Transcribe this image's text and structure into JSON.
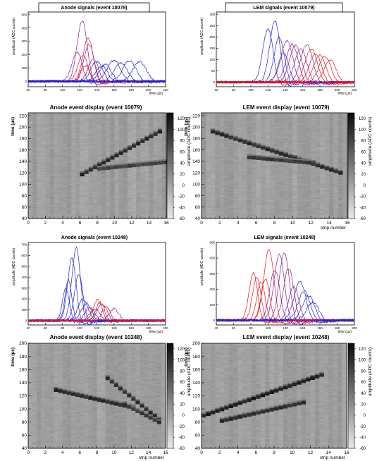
{
  "panels": [
    {
      "kind": "signals",
      "title": "Anode signals (event 10079)",
      "xlabel": "time (µs)",
      "ylabel": "amplitude (ADC counts)",
      "xticks": [
        60,
        80,
        100,
        120,
        140,
        160,
        180,
        200,
        220
      ],
      "yticks": [
        0,
        100,
        200,
        300,
        400,
        500
      ]
    },
    {
      "kind": "signals",
      "title": "LEM signals (event 10079)",
      "xlabel": "time (µs)",
      "ylabel": "amplitude (ADC counts)",
      "xticks": [
        60,
        80,
        100,
        120,
        140,
        160,
        180,
        200,
        220
      ],
      "yticks": [
        0,
        50,
        100,
        150,
        200,
        250,
        300
      ]
    },
    {
      "kind": "display",
      "title": "Anode event display (event 10079)",
      "xlabel": "",
      "ylabel": "time (µs)",
      "zlabel": "amplitude (ADC counts)",
      "xticks": [
        0,
        2,
        4,
        6,
        8,
        10,
        12,
        14,
        16
      ],
      "yticks": [
        40,
        60,
        80,
        100,
        120,
        140,
        160,
        180,
        200,
        220
      ],
      "zticks": [
        -60,
        -40,
        -20,
        0,
        20,
        40,
        60,
        80,
        100,
        120
      ]
    },
    {
      "kind": "display",
      "title": "LEM event display (event 10079)",
      "xlabel": "strip number",
      "ylabel": "time (µs)",
      "zlabel": "amplitude (ADC counts)",
      "xticks": [
        0,
        2,
        4,
        6,
        8,
        10,
        12,
        14,
        16
      ],
      "yticks": [
        40,
        60,
        80,
        100,
        120,
        140,
        160,
        180,
        200,
        220
      ],
      "zticks": [
        -60,
        -40,
        -20,
        0,
        20,
        40,
        60,
        80,
        100,
        120
      ]
    },
    {
      "kind": "signals",
      "title": "Anode signals (event 10248)",
      "xlabel": "time (µs)",
      "ylabel": "amplitude (ADC counts)",
      "xticks": [
        40,
        60,
        80,
        100,
        120,
        140,
        160,
        180,
        200
      ],
      "yticks": [
        0,
        100,
        200,
        300,
        400,
        500,
        600,
        700
      ]
    },
    {
      "kind": "signals",
      "title": "LEM signals (event 10248)",
      "xlabel": "time (µs)",
      "ylabel": "amplitude (ADC counts)",
      "xticks": [
        40,
        60,
        80,
        100,
        120,
        140,
        160,
        180,
        200
      ],
      "yticks": [
        0,
        100,
        200,
        300,
        400,
        500
      ]
    },
    {
      "kind": "display",
      "title": "Anode event display (event 10248)",
      "xlabel": "strip number",
      "ylabel": "time (µs)",
      "zlabel": "amplitude (ADC counts)",
      "xticks": [
        0,
        2,
        4,
        6,
        8,
        10,
        12,
        14,
        16
      ],
      "yticks": [
        40,
        60,
        80,
        100,
        120,
        140,
        160,
        180,
        200
      ],
      "zticks": [
        -60,
        -40,
        -20,
        0,
        20,
        40,
        60,
        80,
        100,
        120
      ]
    },
    {
      "kind": "display",
      "title": "LEM event display (event 10248)",
      "xlabel": "strip number",
      "ylabel": "time (µs)",
      "zlabel": "amplitude (ADC counts)",
      "xticks": [
        0,
        2,
        4,
        6,
        8,
        10,
        12,
        14,
        16
      ],
      "yticks": [
        40,
        60,
        80,
        100,
        120,
        140,
        160,
        180,
        200
      ],
      "zticks": [
        -60,
        -40,
        -20,
        0,
        20,
        40,
        60,
        80,
        100,
        120
      ]
    }
  ],
  "colors": {
    "red": "#e8141b",
    "purple": "#8a1a8a",
    "blue": "#2020d0",
    "panel_border": "#000000"
  },
  "chart_data": [
    {
      "type": "line",
      "title": "Anode signals (event 10079)",
      "xlabel": "time (µs)",
      "ylabel": "amplitude (ADC counts)",
      "xlim": [
        60,
        220
      ],
      "ylim": [
        -40,
        520
      ],
      "series": [
        {
          "color": "red",
          "peaks": [
            [
              124,
              200,
              6
            ],
            [
              130,
              330,
              6
            ],
            [
              127,
              120,
              5
            ]
          ]
        },
        {
          "color": "purple",
          "peaks": [
            [
              117,
              220,
              6
            ],
            [
              123,
              460,
              6
            ],
            [
              131,
              280,
              6
            ],
            [
              136,
              170,
              6
            ]
          ]
        },
        {
          "color": "blue",
          "peaks": [
            [
              140,
              150,
              7
            ],
            [
              146,
              120,
              7
            ],
            [
              150,
              130,
              7
            ],
            [
              160,
              160,
              8
            ],
            [
              168,
              140,
              8
            ],
            [
              178,
              155,
              8
            ],
            [
              190,
              150,
              8
            ]
          ]
        }
      ]
    },
    {
      "type": "line",
      "title": "LEM signals (event 10079)",
      "xlabel": "time (µs)",
      "ylabel": "amplitude (ADC counts)",
      "xlim": [
        60,
        220
      ],
      "ylim": [
        -20,
        310
      ],
      "series": [
        {
          "color": "blue",
          "peaks": [
            [
              120,
              240,
              6
            ],
            [
              128,
              275,
              6
            ],
            [
              133,
              200,
              6
            ],
            [
              138,
              130,
              6
            ]
          ]
        },
        {
          "color": "purple",
          "peaks": [
            [
              142,
              185,
              7
            ],
            [
              148,
              170,
              7
            ],
            [
              152,
              165,
              7
            ],
            [
              158,
              150,
              7
            ],
            [
              165,
              170,
              7
            ]
          ]
        },
        {
          "color": "red",
          "peaks": [
            [
              170,
              150,
              7
            ],
            [
              175,
              130,
              7
            ],
            [
              180,
              120,
              7
            ],
            [
              186,
              115,
              7
            ],
            [
              192,
              100,
              7
            ]
          ]
        }
      ]
    },
    {
      "type": "heatmap",
      "title": "Anode event display (event 10079)",
      "xlabel": "",
      "ylabel": "time (µs)",
      "xlim": [
        0,
        16
      ],
      "ylim": [
        40,
        225
      ],
      "zlim": [
        -60,
        130
      ],
      "tracks": [
        {
          "from": [
            6,
            115
          ],
          "to": [
            15,
            190
          ],
          "amp": 120
        },
        {
          "from": [
            8,
            125
          ],
          "to": [
            16,
            137
          ],
          "amp": 95
        }
      ]
    },
    {
      "type": "heatmap",
      "title": "LEM event display (event 10079)",
      "xlabel": "strip number",
      "ylabel": "time (µs)",
      "xlim": [
        0,
        16
      ],
      "ylim": [
        40,
        225
      ],
      "zlim": [
        -60,
        130
      ],
      "tracks": [
        {
          "from": [
            1,
            190
          ],
          "to": [
            15,
            118
          ],
          "amp": 110
        },
        {
          "from": [
            5,
            145
          ],
          "to": [
            12,
            135
          ],
          "amp": 100
        }
      ]
    },
    {
      "type": "line",
      "title": "Anode signals (event 10248)",
      "xlabel": "time (µs)",
      "ylabel": "amplitude (ADC counts)",
      "xlim": [
        40,
        200
      ],
      "ylim": [
        -40,
        720
      ],
      "series": [
        {
          "color": "blue",
          "peaks": [
            [
              84,
              300,
              4
            ],
            [
              87,
              380,
              4
            ],
            [
              91,
              580,
              5
            ],
            [
              96,
              680,
              5
            ],
            [
              99,
              430,
              5
            ],
            [
              104,
              200,
              6
            ],
            [
              108,
              160,
              6
            ]
          ]
        },
        {
          "color": "purple",
          "peaks": [
            [
              112,
              120,
              6
            ],
            [
              118,
              110,
              6
            ],
            [
              126,
              150,
              6
            ],
            [
              140,
              110,
              6
            ]
          ]
        },
        {
          "color": "red",
          "peaks": [
            [
              121,
              200,
              5
            ],
            [
              124,
              170,
              5
            ],
            [
              131,
              130,
              5
            ]
          ]
        }
      ]
    },
    {
      "type": "line",
      "title": "LEM signals (event 10248)",
      "xlabel": "time (µs)",
      "ylabel": "amplitude (ADC counts)",
      "xlim": [
        40,
        200
      ],
      "ylim": [
        -30,
        500
      ],
      "series": [
        {
          "color": "red",
          "peaks": [
            [
              83,
              310,
              5
            ],
            [
              87,
              280,
              5
            ],
            [
              92,
              250,
              5
            ],
            [
              97,
              270,
              5
            ],
            [
              101,
              460,
              6
            ]
          ]
        },
        {
          "color": "purple",
          "peaks": [
            [
              108,
              330,
              6
            ],
            [
              113,
              430,
              6
            ],
            [
              119,
              440,
              6
            ],
            [
              124,
              340,
              6
            ],
            [
              130,
              220,
              6
            ]
          ]
        },
        {
          "color": "blue",
          "peaks": [
            [
              137,
              250,
              7
            ],
            [
              142,
              190,
              7
            ],
            [
              147,
              160,
              7
            ],
            [
              152,
              120,
              7
            ]
          ]
        }
      ]
    },
    {
      "type": "heatmap",
      "title": "Anode event display (event 10248)",
      "xlabel": "strip number",
      "ylabel": "time (µs)",
      "xlim": [
        0,
        16
      ],
      "ylim": [
        40,
        200
      ],
      "zlim": [
        -60,
        130
      ],
      "tracks": [
        {
          "from": [
            3,
            127
          ],
          "to": [
            12,
            100
          ],
          "amp": 115
        },
        {
          "from": [
            9,
            145
          ],
          "to": [
            15,
            82
          ],
          "amp": 110
        },
        {
          "from": [
            11,
            105
          ],
          "to": [
            15,
            78
          ],
          "amp": 100
        }
      ]
    },
    {
      "type": "heatmap",
      "title": "LEM event display (event 10248)",
      "xlabel": "strip number",
      "ylabel": "time (µs)",
      "xlim": [
        0,
        16
      ],
      "ylim": [
        40,
        200
      ],
      "zlim": [
        -60,
        130
      ],
      "tracks": [
        {
          "from": [
            0,
            88
          ],
          "to": [
            13,
            150
          ],
          "amp": 125
        },
        {
          "from": [
            2,
            80
          ],
          "to": [
            11,
            108
          ],
          "amp": 110
        }
      ]
    }
  ]
}
